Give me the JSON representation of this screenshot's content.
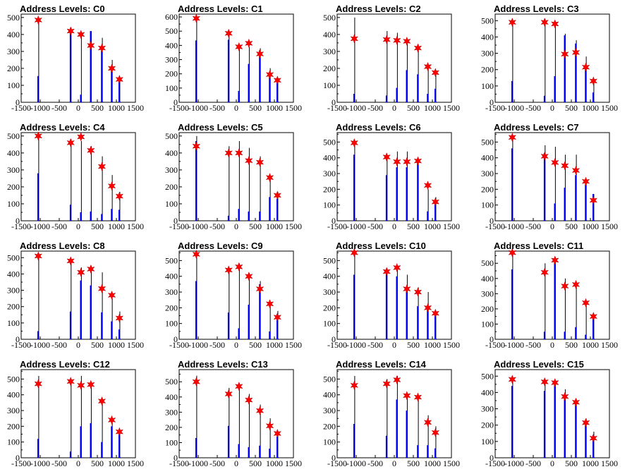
{
  "style": {
    "blue_bar": "#0000ff",
    "black_bar": "#000000",
    "marker": "#ff0000"
  },
  "chart_data": [
    {
      "type": "bar",
      "title": "Address Levels: C0",
      "xlim": [
        -1500,
        1500
      ],
      "ylim": [
        0,
        520
      ],
      "xticks": [
        -1500,
        -1000,
        -500,
        0,
        500,
        1000,
        1500
      ],
      "yticks": [
        0,
        100,
        200,
        300,
        400,
        500
      ],
      "peaks_x": [
        -1050,
        -200,
        70,
        330,
        620,
        880,
        1080
      ],
      "black_values": [
        470,
        440,
        410,
        420,
        380,
        250,
        150
      ],
      "blue_values": [
        155,
        420,
        45,
        420,
        305,
        210,
        125
      ],
      "marker_values": [
        485,
        420,
        400,
        335,
        320,
        200,
        135
      ]
    },
    {
      "type": "bar",
      "title": "Address Levels: C1",
      "xlim": [
        -1500,
        1500
      ],
      "ylim": [
        0,
        620
      ],
      "xticks": [
        -1500,
        -1000,
        -500,
        0,
        500,
        1000,
        1500
      ],
      "yticks": [
        0,
        100,
        200,
        300,
        400,
        500,
        600
      ],
      "peaks_x": [
        -1050,
        -200,
        70,
        330,
        620,
        880,
        1080
      ],
      "black_values": [
        580,
        470,
        380,
        390,
        380,
        240,
        140
      ],
      "blue_values": [
        435,
        440,
        80,
        270,
        365,
        200,
        140
      ],
      "marker_values": [
        590,
        485,
        390,
        415,
        340,
        195,
        155
      ]
    },
    {
      "type": "bar",
      "title": "Address Levels: C2",
      "xlim": [
        -1500,
        1500
      ],
      "ylim": [
        0,
        520
      ],
      "xticks": [
        -1500,
        -1000,
        -500,
        0,
        500,
        1000,
        1500
      ],
      "yticks": [
        0,
        100,
        200,
        300,
        400,
        500
      ],
      "peaks_x": [
        -1050,
        -200,
        70,
        330,
        620,
        880,
        1080
      ],
      "black_values": [
        500,
        420,
        410,
        370,
        340,
        220,
        190
      ],
      "blue_values": [
        50,
        40,
        85,
        190,
        165,
        50,
        80
      ],
      "marker_values": [
        375,
        370,
        365,
        360,
        320,
        210,
        175
      ]
    },
    {
      "type": "bar",
      "title": "Address Levels: C3",
      "xlim": [
        -1500,
        1500
      ],
      "ylim": [
        0,
        540
      ],
      "xticks": [
        -1500,
        -1000,
        -500,
        0,
        500,
        1000,
        1500
      ],
      "yticks": [
        0,
        100,
        200,
        300,
        400,
        500
      ],
      "peaks_x": [
        -1050,
        -200,
        70,
        330,
        620,
        880,
        1080
      ],
      "black_values": [
        480,
        510,
        490,
        420,
        380,
        280,
        140
      ],
      "blue_values": [
        130,
        40,
        160,
        410,
        360,
        210,
        60
      ],
      "marker_values": [
        490,
        490,
        480,
        295,
        305,
        215,
        130
      ]
    },
    {
      "type": "bar",
      "title": "Address Levels: C4",
      "xlim": [
        -1500,
        1500
      ],
      "ylim": [
        0,
        520
      ],
      "xticks": [
        -1500,
        -1000,
        -500,
        0,
        500,
        1000,
        1500
      ],
      "yticks": [
        0,
        100,
        200,
        300,
        400,
        500
      ],
      "peaks_x": [
        -1050,
        -200,
        70,
        330,
        620,
        880,
        1080
      ],
      "black_values": [
        490,
        480,
        470,
        440,
        380,
        270,
        170
      ],
      "blue_values": [
        280,
        95,
        50,
        55,
        40,
        70,
        65
      ],
      "marker_values": [
        500,
        460,
        495,
        415,
        320,
        205,
        145
      ]
    },
    {
      "type": "bar",
      "title": "Address Levels: C5",
      "xlim": [
        -1500,
        1500
      ],
      "ylim": [
        0,
        520
      ],
      "xticks": [
        -1500,
        -1000,
        -500,
        0,
        500,
        1000,
        1500
      ],
      "yticks": [
        0,
        100,
        200,
        300,
        400,
        500
      ],
      "peaks_x": [
        -1050,
        -200,
        70,
        330,
        620,
        880,
        1080
      ],
      "black_values": [
        500,
        440,
        470,
        430,
        380,
        260,
        170
      ],
      "blue_values": [
        470,
        30,
        70,
        55,
        55,
        140,
        130
      ],
      "marker_values": [
        440,
        400,
        400,
        355,
        345,
        255,
        150
      ]
    },
    {
      "type": "bar",
      "title": "Address Levels: C6",
      "xlim": [
        -1500,
        1500
      ],
      "ylim": [
        0,
        560
      ],
      "xticks": [
        -1500,
        -1000,
        -500,
        0,
        500,
        1000,
        1500
      ],
      "yticks": [
        0,
        100,
        200,
        300,
        400,
        500
      ],
      "peaks_x": [
        -1050,
        -200,
        70,
        330,
        620,
        880,
        1080
      ],
      "black_values": [
        510,
        420,
        440,
        440,
        400,
        200,
        150
      ],
      "blue_values": [
        420,
        290,
        340,
        340,
        390,
        60,
        110
      ],
      "marker_values": [
        495,
        405,
        375,
        375,
        380,
        225,
        120
      ]
    },
    {
      "type": "bar",
      "title": "Address Levels: C7",
      "xlim": [
        -1500,
        1500
      ],
      "ylim": [
        0,
        560
      ],
      "xticks": [
        -1500,
        -1000,
        -500,
        0,
        500,
        1000,
        1500
      ],
      "yticks": [
        0,
        100,
        200,
        300,
        400,
        500
      ],
      "peaks_x": [
        -1050,
        -200,
        70,
        330,
        620,
        880,
        1080
      ],
      "black_values": [
        520,
        480,
        470,
        420,
        420,
        250,
        170
      ],
      "blue_values": [
        460,
        430,
        110,
        210,
        290,
        230,
        170
      ],
      "marker_values": [
        530,
        410,
        370,
        350,
        320,
        250,
        130
      ]
    },
    {
      "type": "bar",
      "title": "Address Levels: C8",
      "xlim": [
        -1500,
        1500
      ],
      "ylim": [
        0,
        540
      ],
      "xticks": [
        -1500,
        -1000,
        -500,
        0,
        500,
        1000,
        1500
      ],
      "yticks": [
        0,
        100,
        200,
        300,
        400,
        500
      ],
      "peaks_x": [
        -1050,
        -200,
        70,
        330,
        620,
        880,
        1080
      ],
      "black_values": [
        500,
        480,
        440,
        450,
        410,
        250,
        170
      ],
      "blue_values": [
        50,
        170,
        360,
        330,
        165,
        110,
        60
      ],
      "marker_values": [
        510,
        480,
        410,
        430,
        310,
        270,
        130
      ]
    },
    {
      "type": "bar",
      "title": "Address Levels: C9",
      "xlim": [
        -1500,
        1500
      ],
      "ylim": [
        0,
        560
      ],
      "xticks": [
        -1500,
        -1000,
        -500,
        0,
        500,
        1000,
        1500
      ],
      "yticks": [
        0,
        100,
        200,
        300,
        400,
        500
      ],
      "peaks_x": [
        -1050,
        -200,
        70,
        330,
        620,
        880,
        1080
      ],
      "black_values": [
        520,
        450,
        480,
        420,
        370,
        240,
        180
      ],
      "blue_values": [
        370,
        170,
        70,
        220,
        350,
        50,
        160
      ],
      "marker_values": [
        540,
        440,
        460,
        400,
        320,
        225,
        140
      ]
    },
    {
      "type": "bar",
      "title": "Address Levels: C10",
      "xlim": [
        -1500,
        1500
      ],
      "ylim": [
        0,
        560
      ],
      "xticks": [
        -1500,
        -1000,
        -500,
        0,
        500,
        1000,
        1500
      ],
      "yticks": [
        0,
        100,
        200,
        300,
        400,
        500
      ],
      "peaks_x": [
        -1050,
        -200,
        70,
        330,
        620,
        880,
        1080
      ],
      "black_values": [
        540,
        450,
        470,
        410,
        330,
        300,
        170
      ],
      "blue_values": [
        410,
        420,
        400,
        310,
        210,
        200,
        160
      ],
      "marker_values": [
        550,
        430,
        455,
        320,
        300,
        200,
        165
      ]
    },
    {
      "type": "bar",
      "title": "Address Levels: C11",
      "xlim": [
        -1500,
        1500
      ],
      "ylim": [
        0,
        580
      ],
      "xticks": [
        -1500,
        -1000,
        -500,
        0,
        500,
        1000,
        1500
      ],
      "yticks": [
        0,
        100,
        200,
        300,
        400,
        500
      ],
      "peaks_x": [
        -1050,
        -200,
        70,
        330,
        620,
        880,
        1080
      ],
      "black_values": [
        560,
        500,
        540,
        400,
        380,
        250,
        160
      ],
      "blue_values": [
        460,
        50,
        510,
        50,
        80,
        30,
        150
      ],
      "marker_values": [
        570,
        440,
        520,
        350,
        360,
        240,
        150
      ]
    },
    {
      "type": "bar",
      "title": "Address Levels: C12",
      "xlim": [
        -1500,
        1500
      ],
      "ylim": [
        0,
        560
      ],
      "xticks": [
        -1500,
        -1000,
        -500,
        0,
        500,
        1000,
        1500
      ],
      "yticks": [
        0,
        100,
        200,
        300,
        400,
        500
      ],
      "peaks_x": [
        -1050,
        -200,
        70,
        330,
        620,
        880,
        1080
      ],
      "black_values": [
        520,
        500,
        520,
        470,
        380,
        250,
        170
      ],
      "blue_values": [
        120,
        40,
        200,
        220,
        100,
        200,
        150
      ],
      "marker_values": [
        470,
        485,
        460,
        465,
        360,
        240,
        165
      ]
    },
    {
      "type": "bar",
      "title": "Address Levels: C13",
      "xlim": [
        -1500,
        1500
      ],
      "ylim": [
        0,
        580
      ],
      "xticks": [
        -1500,
        -1000,
        -500,
        0,
        500,
        1000,
        1500
      ],
      "yticks": [
        0,
        100,
        200,
        300,
        400,
        500
      ],
      "peaks_x": [
        -1050,
        -200,
        70,
        330,
        620,
        880,
        1080
      ],
      "black_values": [
        540,
        460,
        490,
        420,
        350,
        260,
        170
      ],
      "blue_values": [
        130,
        210,
        90,
        70,
        80,
        60,
        140
      ],
      "marker_values": [
        500,
        420,
        470,
        380,
        310,
        210,
        160
      ]
    },
    {
      "type": "bar",
      "title": "Address Levels: C14",
      "xlim": [
        -1500,
        1500
      ],
      "ylim": [
        0,
        560
      ],
      "xticks": [
        -1500,
        -1000,
        -500,
        0,
        500,
        1000,
        1500
      ],
      "yticks": [
        0,
        100,
        200,
        300,
        400,
        500
      ],
      "peaks_x": [
        -1050,
        -200,
        70,
        330,
        620,
        880,
        1080
      ],
      "black_values": [
        520,
        500,
        520,
        400,
        370,
        270,
        200
      ],
      "blue_values": [
        215,
        140,
        370,
        300,
        80,
        80,
        60
      ],
      "marker_values": [
        460,
        470,
        495,
        395,
        385,
        225,
        160
      ]
    },
    {
      "type": "bar",
      "title": "Address Levels: C15",
      "xlim": [
        -1500,
        1500
      ],
      "ylim": [
        0,
        540
      ],
      "xticks": [
        -1500,
        -1000,
        -500,
        0,
        500,
        1000,
        1500
      ],
      "yticks": [
        0,
        100,
        200,
        300,
        400,
        500
      ],
      "peaks_x": [
        -1050,
        -200,
        70,
        330,
        620,
        880,
        1080
      ],
      "black_values": [
        490,
        480,
        470,
        420,
        360,
        240,
        160
      ],
      "blue_values": [
        440,
        410,
        450,
        380,
        330,
        200,
        140
      ],
      "marker_values": [
        480,
        465,
        460,
        375,
        340,
        215,
        120
      ]
    }
  ]
}
